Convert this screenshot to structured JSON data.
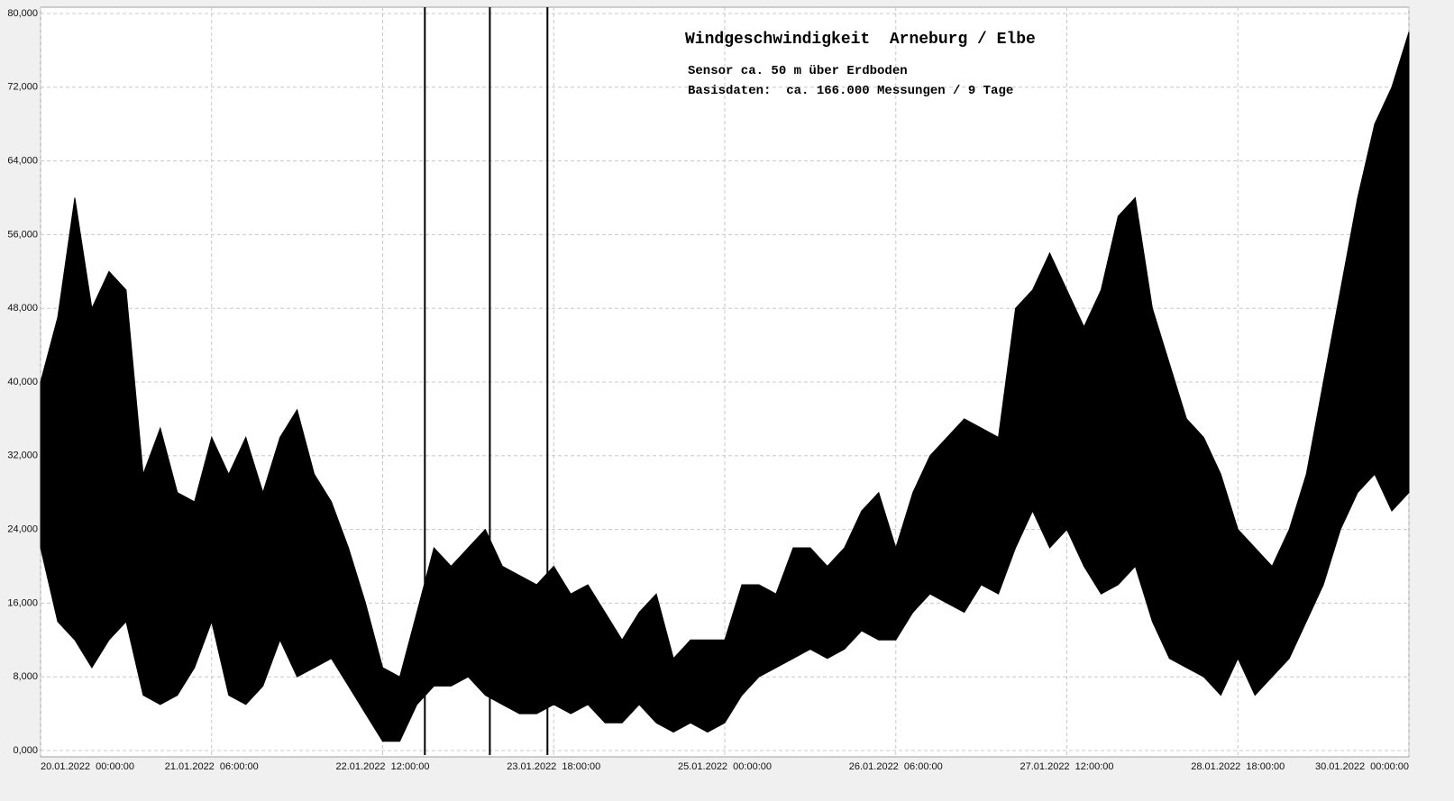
{
  "chart_data": {
    "type": "band",
    "title": "Windgeschwindigkeit  Arneburg / Elbe",
    "subtitle": "Sensor ca. 50 m über Erdboden",
    "annotation": "Basisdaten:  ca. 166.000 Messungen / 9 Tage",
    "color": "#000000",
    "grid": true,
    "xlim": [
      0,
      240
    ],
    "ylim": [
      0,
      80
    ],
    "yticks": [
      {
        "value": 0,
        "label": "0,000"
      },
      {
        "value": 8,
        "label": "8,000"
      },
      {
        "value": 16,
        "label": "16,000"
      },
      {
        "value": 24,
        "label": "24,000"
      },
      {
        "value": 32,
        "label": "32,000"
      },
      {
        "value": 40,
        "label": "40,000"
      },
      {
        "value": 48,
        "label": "48,000"
      },
      {
        "value": 56,
        "label": "56,000"
      },
      {
        "value": 64,
        "label": "64,000"
      },
      {
        "value": 72,
        "label": "72,000"
      },
      {
        "value": 80,
        "label": "80,000"
      }
    ],
    "xticks": [
      {
        "value": 0,
        "label": "20.01.2022  00:00:00"
      },
      {
        "value": 30,
        "label": "21.01.2022  06:00:00"
      },
      {
        "value": 60,
        "label": "22.01.2022  12:00:00"
      },
      {
        "value": 90,
        "label": "23.01.2022  18:00:00"
      },
      {
        "value": 120,
        "label": "25.01.2022  00:00:00"
      },
      {
        "value": 150,
        "label": "26.01.2022  06:00:00"
      },
      {
        "value": 180,
        "label": "27.01.2022  12:00:00"
      },
      {
        "value": 210,
        "label": "28.01.2022  18:00:00"
      },
      {
        "value": 240,
        "label": "30.01.2022  00:00:00"
      }
    ],
    "x": [
      0,
      3,
      6,
      9,
      12,
      15,
      18,
      21,
      24,
      27,
      30,
      33,
      36,
      39,
      42,
      45,
      48,
      51,
      54,
      57,
      60,
      63,
      66,
      69,
      72,
      75,
      78,
      81,
      84,
      87,
      90,
      93,
      96,
      99,
      102,
      105,
      108,
      111,
      114,
      117,
      120,
      123,
      126,
      129,
      132,
      135,
      138,
      141,
      144,
      147,
      150,
      153,
      156,
      159,
      162,
      165,
      168,
      171,
      174,
      177,
      180,
      183,
      186,
      189,
      192,
      195,
      198,
      201,
      204,
      207,
      210,
      213,
      216,
      219,
      222,
      225,
      228,
      231,
      234,
      237,
      240
    ],
    "high": [
      40,
      47,
      60,
      48,
      52,
      50,
      30,
      35,
      28,
      27,
      34,
      30,
      34,
      28,
      34,
      37,
      30,
      27,
      22,
      16,
      9,
      8,
      15,
      22,
      20,
      22,
      24,
      20,
      19,
      18,
      20,
      17,
      18,
      15,
      12,
      15,
      17,
      10,
      12,
      12,
      12,
      18,
      18,
      17,
      22,
      22,
      20,
      22,
      26,
      28,
      22,
      28,
      32,
      34,
      36,
      35,
      34,
      48,
      50,
      54,
      50,
      46,
      50,
      58,
      60,
      48,
      42,
      36,
      34,
      30,
      24,
      22,
      20,
      24,
      30,
      40,
      50,
      60,
      68,
      72,
      78
    ],
    "low": [
      22,
      14,
      12,
      9,
      12,
      14,
      6,
      5,
      6,
      9,
      14,
      6,
      5,
      7,
      12,
      8,
      9,
      10,
      7,
      4,
      1,
      1,
      5,
      7,
      7,
      8,
      6,
      5,
      4,
      4,
      5,
      4,
      5,
      3,
      3,
      5,
      3,
      2,
      3,
      2,
      3,
      6,
      8,
      9,
      10,
      11,
      10,
      11,
      13,
      12,
      12,
      15,
      17,
      16,
      15,
      18,
      17,
      22,
      26,
      22,
      24,
      20,
      17,
      18,
      20,
      14,
      10,
      9,
      8,
      6,
      10,
      6,
      8,
      10,
      14,
      18,
      24,
      28,
      30,
      26,
      28
    ],
    "spikes": {
      "x": [
        67.4,
        78.8,
        88.9
      ],
      "values": [
        80,
        80,
        80
      ]
    }
  }
}
